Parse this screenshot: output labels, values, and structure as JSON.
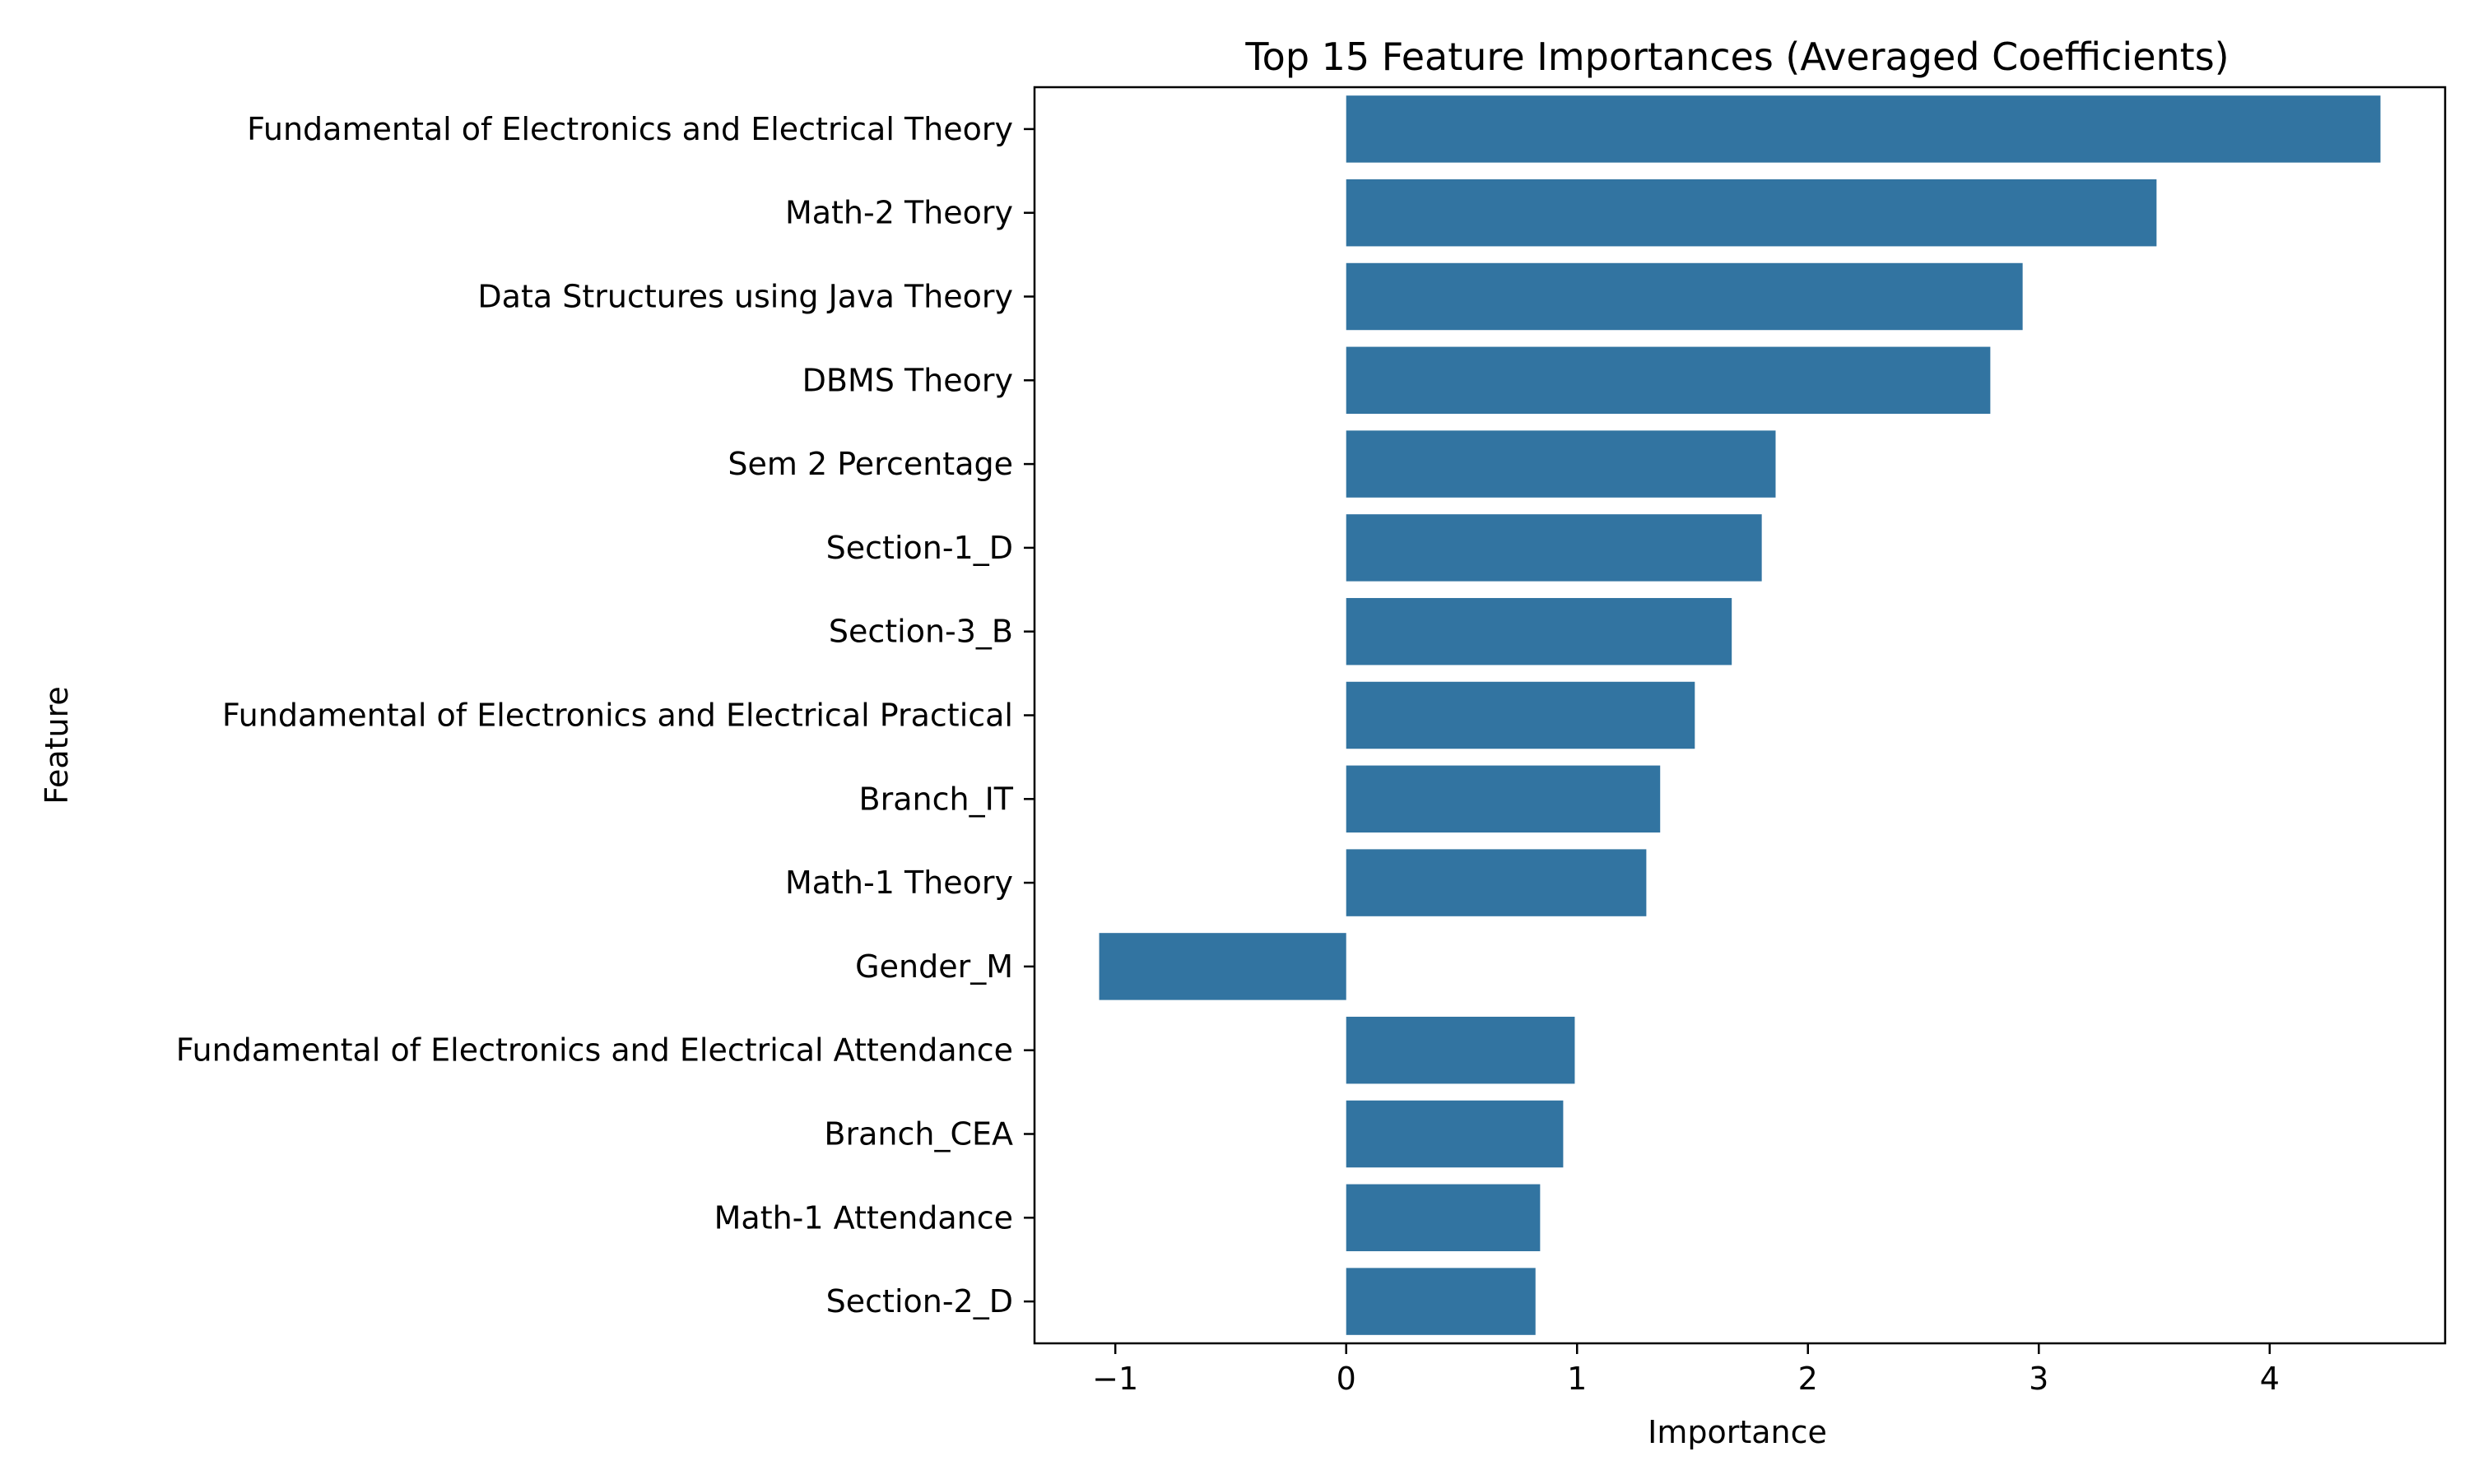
{
  "chart_data": {
    "type": "bar",
    "orientation": "horizontal",
    "title": "Top 15 Feature Importances (Averaged Coefficients)",
    "xlabel": "Importance",
    "ylabel": "Feature",
    "categories": [
      "Fundamental of Electronics and Electrical Theory",
      "Math-2 Theory",
      "Data Structures using Java Theory",
      "DBMS Theory",
      "Sem 2 Percentage",
      "Section-1_D",
      "Section-3_B",
      "Fundamental of Electronics and Electrical Practical",
      "Branch_IT",
      "Math-1 Theory",
      "Gender_M",
      "Fundamental of Electronics and Electrical Attendance",
      "Branch_CEA",
      "Math-1 Attendance",
      "Section-2_D"
    ],
    "values": [
      4.48,
      3.51,
      2.93,
      2.79,
      1.86,
      1.8,
      1.67,
      1.51,
      1.36,
      1.3,
      -1.07,
      0.99,
      0.94,
      0.84,
      0.82
    ],
    "xlim": [
      -1.35,
      4.76
    ],
    "xticks": [
      -1,
      0,
      1,
      2,
      3,
      4
    ],
    "xtick_labels": [
      "−1",
      "0",
      "1",
      "2",
      "3",
      "4"
    ],
    "grid": false,
    "legend": "none",
    "bar_color": "#3274a1"
  }
}
